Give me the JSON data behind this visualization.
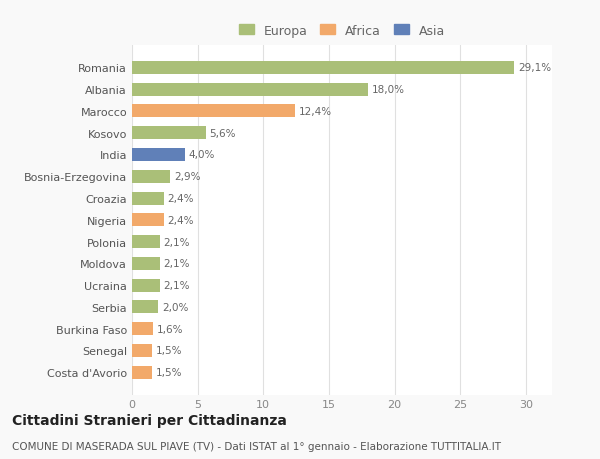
{
  "categories": [
    "Costa d'Avorio",
    "Senegal",
    "Burkina Faso",
    "Serbia",
    "Ucraina",
    "Moldova",
    "Polonia",
    "Nigeria",
    "Croazia",
    "Bosnia-Erzegovina",
    "India",
    "Kosovo",
    "Marocco",
    "Albania",
    "Romania"
  ],
  "values": [
    1.5,
    1.5,
    1.6,
    2.0,
    2.1,
    2.1,
    2.1,
    2.4,
    2.4,
    2.9,
    4.0,
    5.6,
    12.4,
    18.0,
    29.1
  ],
  "colors": [
    "#F2A96A",
    "#F2A96A",
    "#F2A96A",
    "#AABF78",
    "#AABF78",
    "#AABF78",
    "#AABF78",
    "#F2A96A",
    "#AABF78",
    "#AABF78",
    "#6080B8",
    "#AABF78",
    "#F2A96A",
    "#AABF78",
    "#AABF78"
  ],
  "labels": [
    "1,5%",
    "1,5%",
    "1,6%",
    "2,0%",
    "2,1%",
    "2,1%",
    "2,1%",
    "2,4%",
    "2,4%",
    "2,9%",
    "4,0%",
    "5,6%",
    "12,4%",
    "18,0%",
    "29,1%"
  ],
  "legend": [
    {
      "label": "Europa",
      "color": "#AABF78"
    },
    {
      "label": "Africa",
      "color": "#F2A96A"
    },
    {
      "label": "Asia",
      "color": "#6080B8"
    }
  ],
  "xlim": [
    0,
    32
  ],
  "xticks": [
    0,
    5,
    10,
    15,
    20,
    25,
    30
  ],
  "title": "Cittadini Stranieri per Cittadinanza",
  "subtitle": "COMUNE DI MASERADA SUL PIAVE (TV) - Dati ISTAT al 1° gennaio - Elaborazione TUTTITALIA.IT",
  "background_color": "#f9f9f9",
  "bar_background": "#ffffff",
  "grid_color": "#e0e0e0",
  "title_fontsize": 10,
  "subtitle_fontsize": 7.5,
  "label_fontsize": 7.5,
  "tick_fontsize": 8,
  "legend_fontsize": 9
}
